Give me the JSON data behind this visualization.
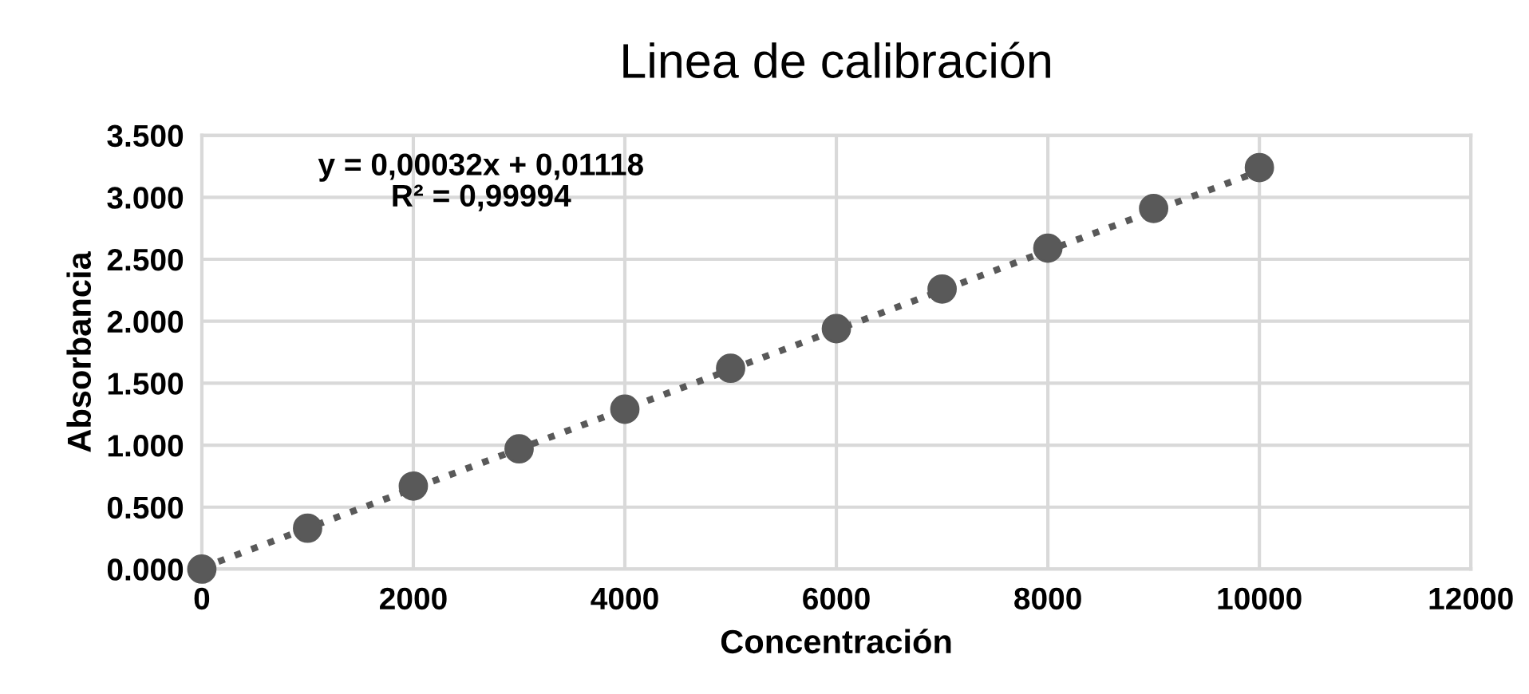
{
  "chart_data": {
    "type": "scatter",
    "title": "Linea de calibración",
    "xlabel": "Concentración",
    "ylabel": "Absorbancia",
    "series": [
      {
        "color": "#595959",
        "x": [
          0,
          1000,
          2000,
          3000,
          4000,
          5000,
          6000,
          7000,
          8000,
          9000,
          10000
        ],
        "values": [
          0.0,
          0.33,
          0.67,
          0.97,
          1.29,
          1.62,
          1.94,
          2.26,
          2.59,
          2.91,
          3.24
        ],
        "marker": "circle"
      },
      {
        "type": "line",
        "color": "#595959",
        "x": [
          0,
          10000
        ],
        "values": [
          0.01,
          3.21
        ],
        "line_style": "dotted"
      }
    ],
    "annotations": [
      "y = 0,00032x + 0,01118\nR² = 0,99994"
    ],
    "xlim": [
      0,
      12000
    ],
    "xticks": [
      0,
      2000,
      4000,
      6000,
      8000,
      10000,
      12000
    ],
    "ylim": [
      0,
      3.5
    ],
    "yticks": [
      {
        "value": 0,
        "label": "0.000"
      },
      {
        "value": 0.5,
        "label": "0.500"
      },
      {
        "value": 1,
        "label": "1.000"
      },
      {
        "value": 1.5,
        "label": "1.500"
      },
      {
        "value": 2,
        "label": "2.000"
      },
      {
        "value": 2.5,
        "label": "2.500"
      },
      {
        "value": 3,
        "label": "3.000"
      },
      {
        "value": 3.5,
        "label": "3.500"
      }
    ],
    "grid": true,
    "legend": false
  }
}
